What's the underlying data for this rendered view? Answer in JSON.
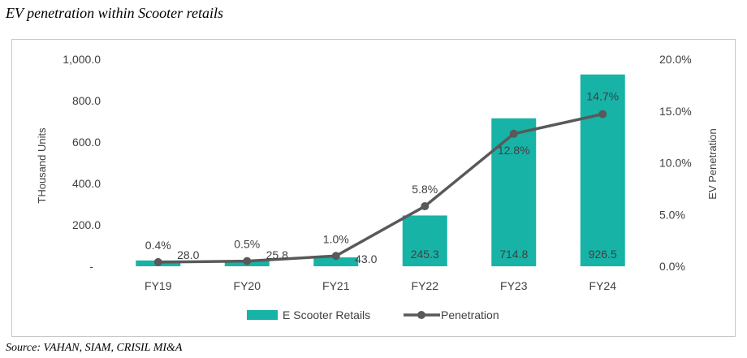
{
  "header": {
    "title": "EV penetration within Scooter retails"
  },
  "footer": {
    "source": "Source: VAHAN, SIAM, CRISIL MI&A"
  },
  "chart_data": {
    "type": "bar",
    "categories": [
      "FY19",
      "FY20",
      "FY21",
      "FY22",
      "FY23",
      "FY24"
    ],
    "series": [
      {
        "name": "E Scooter Retails",
        "type": "bar",
        "axis": "left",
        "values": [
          28.0,
          25.8,
          43.0,
          245.3,
          714.8,
          926.5
        ],
        "labels": [
          "28.0",
          "25.8",
          "43.0",
          "245.3",
          "714.8",
          "926.5"
        ],
        "color": "#17b3a6"
      },
      {
        "name": "Penetration",
        "type": "line",
        "axis": "right",
        "values": [
          0.4,
          0.5,
          1.0,
          5.8,
          12.8,
          14.7
        ],
        "labels": [
          "0.4%",
          "0.5%",
          "1.0%",
          "5.8%",
          "12.8%",
          "14.7%"
        ],
        "color": "#595959"
      }
    ],
    "ylabel": "THousand Units",
    "y2label": "EV Penetration",
    "ylim": [
      0,
      1000
    ],
    "y2lim": [
      0,
      20
    ],
    "yticks": [
      "-",
      "200.0",
      "400.0",
      "600.0",
      "800.0",
      "1,000.0"
    ],
    "y2ticks": [
      "0.0%",
      "5.0%",
      "10.0%",
      "15.0%",
      "20.0%"
    ],
    "grid": false,
    "legend_position": "bottom"
  }
}
